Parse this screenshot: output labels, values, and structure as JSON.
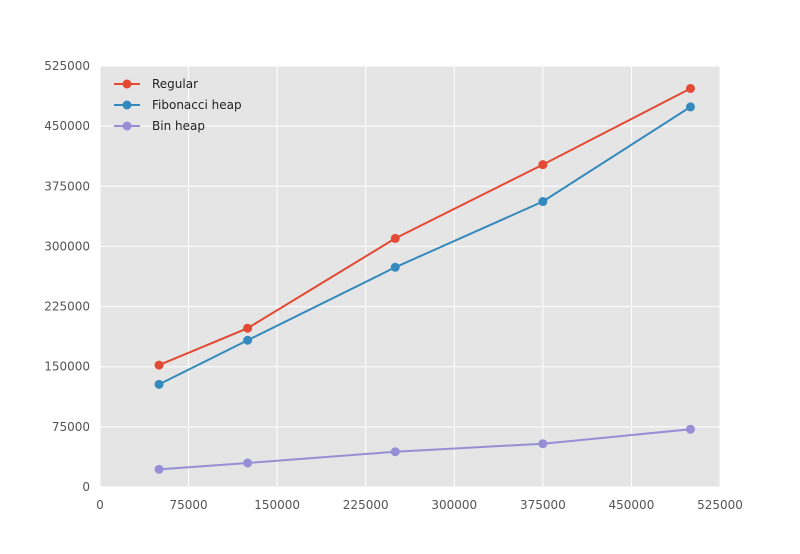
{
  "chart_data": {
    "type": "line",
    "title": "",
    "xlabel": "",
    "ylabel": "",
    "x": [
      50000,
      125000,
      250000,
      375000,
      500000
    ],
    "xlim": [
      0,
      525000
    ],
    "ylim": [
      0,
      525000
    ],
    "xticks": [
      0,
      75000,
      150000,
      225000,
      300000,
      375000,
      450000,
      525000
    ],
    "yticks": [
      0,
      75000,
      150000,
      225000,
      300000,
      375000,
      450000,
      525000
    ],
    "xtick_labels": [
      "0",
      "75000",
      "150000",
      "225000",
      "300000",
      "375000",
      "450000",
      "525000"
    ],
    "ytick_labels": [
      "0",
      "75000",
      "150000",
      "225000",
      "300000",
      "375000",
      "450000",
      "525000"
    ],
    "grid": true,
    "legend_position": "top-left",
    "series": [
      {
        "name": "Regular",
        "color": "#E24A33",
        "values": [
          152000,
          198000,
          310000,
          402000,
          497000
        ]
      },
      {
        "name": "Fibonacci heap",
        "color": "#348ABD",
        "values": [
          128000,
          183000,
          274000,
          356000,
          474000
        ]
      },
      {
        "name": "Bin heap",
        "color": "#988ED5",
        "values": [
          22000,
          30000,
          44000,
          54000,
          72000
        ]
      }
    ]
  }
}
